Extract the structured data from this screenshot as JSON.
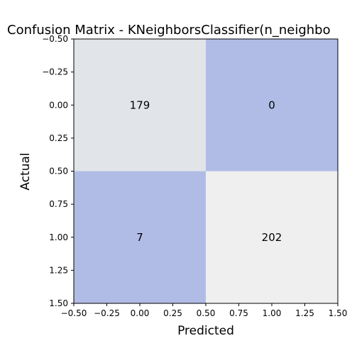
{
  "chart_data": {
    "type": "heatmap",
    "title": "Confusion Matrix - KNeighborsClassifier(n_neighbo",
    "xlabel": "Predicted",
    "ylabel": "Actual",
    "xlim": [
      -0.5,
      1.5
    ],
    "ylim": [
      1.5,
      -0.5
    ],
    "x_ticks": [
      -0.5,
      -0.25,
      0.0,
      0.25,
      0.5,
      0.75,
      1.0,
      1.25,
      1.5
    ],
    "x_tick_labels": [
      "−0.50",
      "−0.25",
      "0.00",
      "0.25",
      "0.50",
      "0.75",
      "1.00",
      "1.25",
      "1.50"
    ],
    "y_ticks": [
      -0.5,
      -0.25,
      0.0,
      0.25,
      0.5,
      0.75,
      1.0,
      1.25,
      1.5
    ],
    "y_tick_labels": [
      "−0.50",
      "−0.25",
      "0.00",
      "0.25",
      "0.50",
      "0.75",
      "1.00",
      "1.25",
      "1.50"
    ],
    "matrix": [
      [
        179,
        0
      ],
      [
        7,
        202
      ]
    ],
    "cell_labels": [
      [
        "179",
        "0"
      ],
      [
        "7",
        "202"
      ]
    ],
    "cell_colors": [
      [
        "#e1e5ea",
        "#b1bce6"
      ],
      [
        "#b1bce6",
        "#efefef"
      ]
    ],
    "grid": false
  }
}
